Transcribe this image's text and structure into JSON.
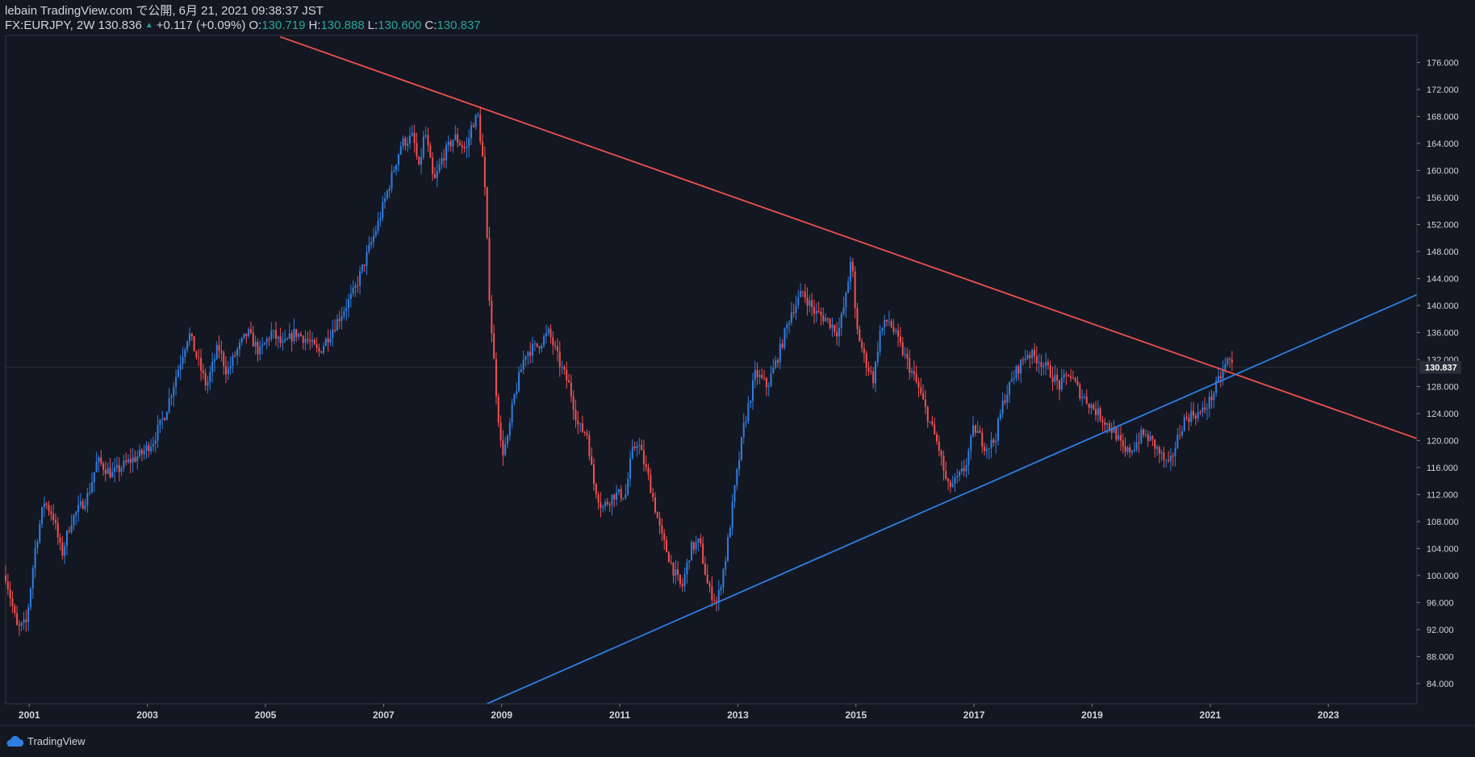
{
  "header": {
    "publish_line": "lebain TradingView.com で公開, 6月 21, 2021 09:38:37 JST",
    "symbol_line": "FX:EURJPY, 2W 130.836",
    "change": "+0.117 (+0.09%)",
    "open_label": "O:",
    "open_value": "130.719",
    "high_label": "H:",
    "high_value": "130.888",
    "low_label": "L:",
    "low_value": "130.600",
    "close_label": "C:",
    "close_value": "130.837"
  },
  "brand": {
    "label": "TradingView"
  },
  "colors": {
    "background": "#131722",
    "up": "#2f7ee0",
    "down": "#f0504f",
    "grid": "#2a2e39",
    "text": "#d1d4dc",
    "teal": "#26a69a"
  },
  "chart_data": {
    "type": "candlestick",
    "title": "FX:EURJPY, 2W",
    "x_range": [
      2000.6,
      2024.5
    ],
    "ylim": [
      81,
      180
    ],
    "x_ticks": [
      "2001",
      "2003",
      "2005",
      "2007",
      "2009",
      "2011",
      "2013",
      "2015",
      "2017",
      "2019",
      "2021",
      "2023"
    ],
    "x_tick_values": [
      2001,
      2003,
      2005,
      2007,
      2009,
      2011,
      2013,
      2015,
      2017,
      2019,
      2021,
      2023
    ],
    "y_ticks": [
      "84.000",
      "88.000",
      "92.000",
      "96.000",
      "100.000",
      "104.000",
      "108.000",
      "112.000",
      "116.000",
      "120.000",
      "124.000",
      "128.000",
      "132.000",
      "136.000",
      "140.000",
      "144.000",
      "148.000",
      "152.000",
      "156.000",
      "160.000",
      "164.000",
      "168.000",
      "172.000",
      "176.000"
    ],
    "y_tick_values": [
      84,
      88,
      92,
      96,
      100,
      104,
      108,
      112,
      116,
      120,
      124,
      128,
      132,
      136,
      140,
      144,
      148,
      152,
      156,
      160,
      164,
      168,
      172,
      176
    ],
    "last_price_label": "130.837",
    "last_price": 130.837,
    "price_path": [
      [
        2000.6,
        100
      ],
      [
        2000.8,
        92
      ],
      [
        2000.95,
        93
      ],
      [
        2001.1,
        104
      ],
      [
        2001.25,
        111
      ],
      [
        2001.4,
        109
      ],
      [
        2001.55,
        103
      ],
      [
        2001.7,
        108
      ],
      [
        2001.85,
        110
      ],
      [
        2002.0,
        112
      ],
      [
        2002.15,
        117
      ],
      [
        2002.4,
        115
      ],
      [
        2002.7,
        117
      ],
      [
        2002.9,
        118
      ],
      [
        2003.1,
        120
      ],
      [
        2003.3,
        124
      ],
      [
        2003.5,
        130
      ],
      [
        2003.7,
        136
      ],
      [
        2003.85,
        132
      ],
      [
        2004.0,
        128
      ],
      [
        2004.2,
        134
      ],
      [
        2004.35,
        130
      ],
      [
        2004.5,
        133
      ],
      [
        2004.7,
        136
      ],
      [
        2004.9,
        133
      ],
      [
        2005.1,
        136
      ],
      [
        2005.3,
        134
      ],
      [
        2005.5,
        136
      ],
      [
        2005.7,
        135
      ],
      [
        2005.9,
        133
      ],
      [
        2006.1,
        136
      ],
      [
        2006.3,
        139
      ],
      [
        2006.5,
        142
      ],
      [
        2006.7,
        147
      ],
      [
        2006.9,
        152
      ],
      [
        2007.1,
        158
      ],
      [
        2007.3,
        164
      ],
      [
        2007.5,
        165
      ],
      [
        2007.6,
        160
      ],
      [
        2007.7,
        166
      ],
      [
        2007.85,
        158
      ],
      [
        2008.0,
        162
      ],
      [
        2008.2,
        165
      ],
      [
        2008.4,
        163
      ],
      [
        2008.5,
        167
      ],
      [
        2008.6,
        168
      ],
      [
        2008.7,
        160
      ],
      [
        2008.8,
        140
      ],
      [
        2008.9,
        128
      ],
      [
        2009.0,
        118
      ],
      [
        2009.1,
        120
      ],
      [
        2009.2,
        126
      ],
      [
        2009.4,
        133
      ],
      [
        2009.6,
        134
      ],
      [
        2009.8,
        136
      ],
      [
        2010.0,
        131
      ],
      [
        2010.15,
        128
      ],
      [
        2010.3,
        122
      ],
      [
        2010.45,
        121
      ],
      [
        2010.55,
        114
      ],
      [
        2010.7,
        110
      ],
      [
        2010.9,
        112
      ],
      [
        2011.1,
        112
      ],
      [
        2011.2,
        118
      ],
      [
        2011.3,
        120
      ],
      [
        2011.5,
        114
      ],
      [
        2011.7,
        106
      ],
      [
        2011.9,
        101
      ],
      [
        2012.05,
        98
      ],
      [
        2012.2,
        104
      ],
      [
        2012.35,
        105
      ],
      [
        2012.5,
        98
      ],
      [
        2012.65,
        96
      ],
      [
        2012.8,
        103
      ],
      [
        2012.95,
        113
      ],
      [
        2013.1,
        122
      ],
      [
        2013.3,
        130
      ],
      [
        2013.5,
        128
      ],
      [
        2013.7,
        133
      ],
      [
        2013.9,
        139
      ],
      [
        2014.1,
        142
      ],
      [
        2014.3,
        139
      ],
      [
        2014.5,
        138
      ],
      [
        2014.7,
        136
      ],
      [
        2014.85,
        142
      ],
      [
        2014.92,
        148
      ],
      [
        2015.0,
        137
      ],
      [
        2015.15,
        132
      ],
      [
        2015.3,
        129
      ],
      [
        2015.4,
        136
      ],
      [
        2015.55,
        138
      ],
      [
        2015.7,
        135
      ],
      [
        2015.9,
        131
      ],
      [
        2016.05,
        128
      ],
      [
        2016.2,
        124
      ],
      [
        2016.4,
        119
      ],
      [
        2016.55,
        113
      ],
      [
        2016.7,
        114
      ],
      [
        2016.85,
        116
      ],
      [
        2017.0,
        122
      ],
      [
        2017.2,
        119
      ],
      [
        2017.35,
        120
      ],
      [
        2017.5,
        126
      ],
      [
        2017.7,
        130
      ],
      [
        2017.9,
        133
      ],
      [
        2018.1,
        132
      ],
      [
        2018.3,
        130
      ],
      [
        2018.45,
        128
      ],
      [
        2018.6,
        130
      ],
      [
        2018.8,
        127
      ],
      [
        2019.0,
        125
      ],
      [
        2019.2,
        123
      ],
      [
        2019.4,
        121
      ],
      [
        2019.55,
        118
      ],
      [
        2019.7,
        119
      ],
      [
        2019.85,
        121
      ],
      [
        2020.0,
        120
      ],
      [
        2020.15,
        118
      ],
      [
        2020.3,
        116
      ],
      [
        2020.4,
        119
      ],
      [
        2020.55,
        123
      ],
      [
        2020.7,
        124
      ],
      [
        2020.85,
        124
      ],
      [
        2021.0,
        126
      ],
      [
        2021.15,
        129
      ],
      [
        2021.3,
        132
      ],
      [
        2021.4,
        131
      ]
    ],
    "trendlines": [
      {
        "name": "resistance",
        "color": "#f0504f",
        "from": [
          2005.25,
          179.8
        ],
        "to": [
          2024.5,
          120.3
        ]
      },
      {
        "name": "support",
        "color": "#2f7ee0",
        "from": [
          2008.75,
          81
        ],
        "to": [
          2024.5,
          141.6
        ]
      }
    ]
  }
}
